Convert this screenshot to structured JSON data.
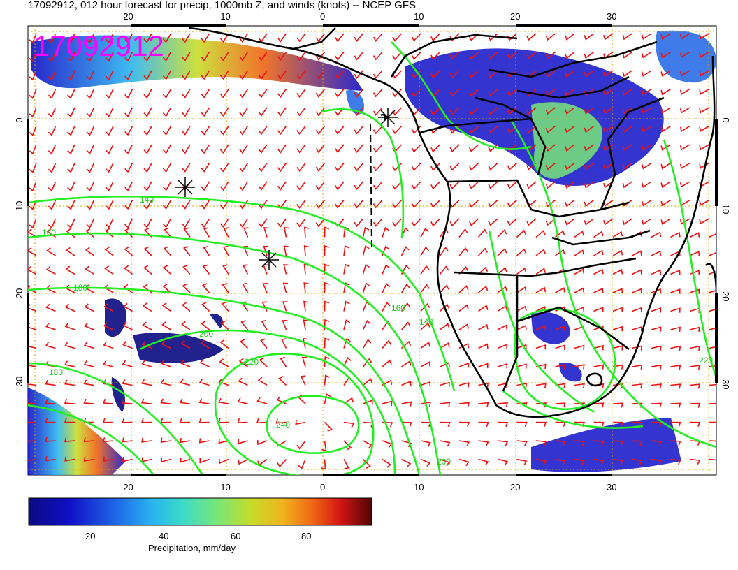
{
  "title": "17092912, 012 hour forecast for precip, 1000mb Z, and winds (knots) -- NCEP GFS",
  "stamp": "17092912",
  "lon_ticks": [
    "-20",
    "-10",
    "0",
    "10",
    "20",
    "30"
  ],
  "lat_ticks": [
    "0",
    "-10",
    "-20",
    "-30"
  ],
  "contour_labels": [
    "140",
    "160",
    "180",
    "200",
    "220",
    "240",
    "180",
    "160",
    "140",
    "200",
    "220"
  ],
  "colorbar": {
    "label": "Precipitation, mm/day",
    "ticks": [
      "20",
      "40",
      "60",
      "80"
    ],
    "colors": [
      "#0a0a82",
      "#1010c8",
      "#1e64e6",
      "#28b4f0",
      "#3cdcc8",
      "#78e678",
      "#c8dc28",
      "#f0b41e",
      "#f06414",
      "#d21414",
      "#8c0a0a",
      "#500505"
    ]
  },
  "colors": {
    "contour": "#22ee22",
    "barb": "#ee1111",
    "coast": "#000000",
    "grid": "#d8a800"
  }
}
